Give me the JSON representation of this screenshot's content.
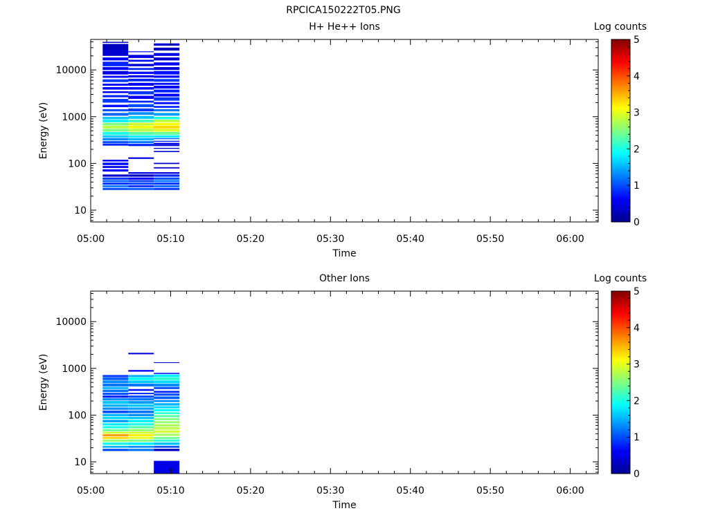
{
  "figure_title": "RPCICA150222T05.PNG",
  "colorbar": {
    "label": "Log counts",
    "min": 0,
    "max": 5,
    "ticks": [
      "0",
      "1",
      "2",
      "3",
      "4",
      "5"
    ],
    "colormap": "jet"
  },
  "chart_data": [
    {
      "type": "heatmap",
      "title": "H+ He++ Ions",
      "xlabel": "Time",
      "ylabel": "Energy (eV)",
      "x_ticks": [
        "05:00",
        "05:10",
        "05:20",
        "05:30",
        "05:40",
        "05:50",
        "06:00"
      ],
      "y_ticks": [
        "10",
        "100",
        "1000",
        "10000"
      ],
      "y_scale": "log",
      "xlim_min": [
        0,
        63.5
      ],
      "ylim": [
        5.6,
        45000
      ],
      "colorbar_label": "Log counts",
      "clim": [
        0,
        5
      ],
      "time_bins_min": [
        [
          1.5,
          4.7
        ],
        [
          4.7,
          7.9
        ],
        [
          7.9,
          11.1
        ]
      ],
      "cells": [
        [
          [
            38000,
            40000,
            0.4
          ],
          [
            27000,
            36000,
            0.3
          ],
          [
            20000,
            27000,
            0.4
          ],
          [
            16000,
            18500,
            0.6
          ],
          [
            12000,
            15000,
            0.8
          ],
          [
            10000,
            11500,
            0.6
          ],
          [
            8000,
            9500,
            0.5
          ],
          [
            6800,
            7500,
            0.7
          ],
          [
            5500,
            6300,
            0.9
          ],
          [
            4600,
            5100,
            0.6
          ],
          [
            3800,
            4300,
            0.7
          ],
          [
            3200,
            3500,
            0.6
          ],
          [
            2600,
            2900,
            0.8
          ],
          [
            2000,
            2400,
            0.9
          ],
          [
            1600,
            1800,
            0.7
          ],
          [
            1300,
            1450,
            1.0
          ],
          [
            1050,
            1200,
            1.1
          ],
          [
            880,
            990,
            1.6
          ],
          [
            760,
            860,
            1.8
          ],
          [
            650,
            740,
            2.5
          ],
          [
            560,
            640,
            2.8
          ],
          [
            480,
            550,
            2.5
          ],
          [
            410,
            470,
            2.0
          ],
          [
            360,
            400,
            1.6
          ],
          [
            310,
            350,
            1.3
          ],
          [
            270,
            300,
            1.0
          ],
          [
            240,
            265,
            0.8
          ],
          [
            110,
            120,
            0.6
          ],
          [
            92,
            104,
            0.7
          ],
          [
            80,
            88,
            0.5
          ],
          [
            67,
            75,
            0.6
          ],
          [
            52,
            58,
            0.4
          ],
          [
            45,
            50,
            0.9
          ],
          [
            40,
            44,
            1.1
          ],
          [
            35,
            39,
            0.9
          ],
          [
            31,
            34,
            1.2
          ],
          [
            27,
            30,
            1.0
          ]
        ],
        [
          [
            24000,
            25000,
            0.6
          ],
          [
            18000,
            21000,
            0.5
          ],
          [
            15000,
            16500,
            0.7
          ],
          [
            12000,
            13500,
            0.4
          ],
          [
            10000,
            11000,
            0.8
          ],
          [
            8200,
            9200,
            0.7
          ],
          [
            6900,
            7700,
            0.5
          ],
          [
            5700,
            6500,
            0.8
          ],
          [
            4600,
            5300,
            0.6
          ],
          [
            3800,
            4300,
            0.7
          ],
          [
            3000,
            3500,
            0.9
          ],
          [
            2400,
            2800,
            0.6
          ],
          [
            2000,
            2200,
            0.8
          ],
          [
            1600,
            1850,
            1.0
          ],
          [
            1300,
            1500,
            0.9
          ],
          [
            1100,
            1250,
            1.3
          ],
          [
            900,
            1040,
            1.6
          ],
          [
            760,
            860,
            2.2
          ],
          [
            650,
            740,
            2.9
          ],
          [
            560,
            640,
            3.1
          ],
          [
            480,
            550,
            2.8
          ],
          [
            410,
            470,
            2.3
          ],
          [
            360,
            400,
            1.8
          ],
          [
            310,
            350,
            1.5
          ],
          [
            270,
            300,
            1.2
          ],
          [
            235,
            262,
            0.8
          ],
          [
            125,
            135,
            0.5
          ],
          [
            60,
            65,
            0.5
          ],
          [
            52,
            58,
            0.3
          ],
          [
            45,
            50,
            0.6
          ],
          [
            40,
            44,
            0.9
          ],
          [
            35,
            39,
            1.0
          ],
          [
            31,
            34,
            0.8
          ],
          [
            27,
            30,
            1.1
          ]
        ],
        [
          [
            33000,
            37000,
            0.4
          ],
          [
            26000,
            30000,
            0.3
          ],
          [
            20000,
            23000,
            0.5
          ],
          [
            16000,
            18500,
            0.4
          ],
          [
            12500,
            14500,
            0.6
          ],
          [
            10000,
            11500,
            0.4
          ],
          [
            8000,
            9500,
            0.7
          ],
          [
            6800,
            7600,
            0.6
          ],
          [
            5600,
            6400,
            0.9
          ],
          [
            4800,
            5300,
            0.7
          ],
          [
            4000,
            4600,
            0.6
          ],
          [
            3300,
            3800,
            0.8
          ],
          [
            2700,
            3100,
            0.6
          ],
          [
            2200,
            2600,
            0.9
          ],
          [
            1850,
            2050,
            0.7
          ],
          [
            1550,
            1700,
            0.8
          ],
          [
            1300,
            1450,
            1.2
          ],
          [
            1050,
            1200,
            1.4
          ],
          [
            880,
            990,
            2.0
          ],
          [
            760,
            860,
            2.8
          ],
          [
            650,
            740,
            3.1
          ],
          [
            560,
            640,
            3.3
          ],
          [
            480,
            550,
            3.0
          ],
          [
            410,
            470,
            2.4
          ],
          [
            360,
            400,
            1.8
          ],
          [
            330,
            350,
            1.2
          ],
          [
            290,
            305,
            0.8
          ],
          [
            250,
            275,
            0.5
          ],
          [
            235,
            248,
            0.4
          ],
          [
            205,
            215,
            0.4
          ],
          [
            175,
            185,
            0.4
          ],
          [
            97,
            103,
            0.4
          ],
          [
            78,
            83,
            0.4
          ],
          [
            60,
            65,
            0.4
          ],
          [
            52,
            58,
            0.8
          ],
          [
            45,
            50,
            1.0
          ],
          [
            40,
            44,
            1.2
          ],
          [
            35,
            39,
            0.9
          ],
          [
            31,
            34,
            1.1
          ],
          [
            27,
            30,
            0.9
          ]
        ]
      ]
    },
    {
      "type": "heatmap",
      "title": "Other Ions",
      "xlabel": "Time",
      "ylabel": "Energy (eV)",
      "x_ticks": [
        "05:00",
        "05:10",
        "05:20",
        "05:30",
        "05:40",
        "05:50",
        "06:00"
      ],
      "y_ticks": [
        "10",
        "100",
        "1000",
        "10000"
      ],
      "y_scale": "log",
      "xlim_min": [
        0,
        63.5
      ],
      "ylim": [
        5.6,
        45000
      ],
      "colorbar_label": "Log counts",
      "clim": [
        0,
        5
      ],
      "time_bins_min": [
        [
          1.5,
          4.7
        ],
        [
          4.7,
          7.9
        ],
        [
          7.9,
          11.1
        ]
      ],
      "cells": [
        [
          [
            650,
            720,
            0.9
          ],
          [
            560,
            640,
            1.1
          ],
          [
            480,
            550,
            1.3
          ],
          [
            410,
            470,
            1.2
          ],
          [
            360,
            400,
            1.5
          ],
          [
            310,
            350,
            1.2
          ],
          [
            270,
            300,
            1.0
          ],
          [
            235,
            262,
            0.8
          ],
          [
            205,
            230,
            1.3
          ],
          [
            175,
            200,
            1.6
          ],
          [
            150,
            170,
            1.5
          ],
          [
            130,
            145,
            1.3
          ],
          [
            110,
            125,
            1.0
          ],
          [
            95,
            106,
            1.5
          ],
          [
            82,
            92,
            1.7
          ],
          [
            70,
            79,
            1.4
          ],
          [
            60,
            67,
            1.8
          ],
          [
            52,
            58,
            2.0
          ],
          [
            45,
            50,
            2.4
          ],
          [
            40,
            44,
            2.9
          ],
          [
            35,
            39,
            3.6
          ],
          [
            31,
            34,
            3.3
          ],
          [
            27,
            30,
            2.6
          ],
          [
            23,
            26,
            2.0
          ],
          [
            20,
            22,
            1.5
          ],
          [
            17,
            19,
            1.0
          ]
        ],
        [
          [
            2000,
            2150,
            0.5
          ],
          [
            850,
            920,
            0.6
          ],
          [
            650,
            720,
            1.5
          ],
          [
            560,
            640,
            1.9
          ],
          [
            480,
            550,
            1.6
          ],
          [
            410,
            470,
            1.2
          ],
          [
            330,
            360,
            0.7
          ],
          [
            280,
            300,
            0.8
          ],
          [
            235,
            262,
            1.0
          ],
          [
            205,
            230,
            1.2
          ],
          [
            175,
            200,
            1.4
          ],
          [
            150,
            170,
            1.6
          ],
          [
            130,
            145,
            1.4
          ],
          [
            110,
            125,
            1.2
          ],
          [
            95,
            106,
            1.3
          ],
          [
            82,
            92,
            1.6
          ],
          [
            70,
            79,
            1.8
          ],
          [
            60,
            67,
            2.0
          ],
          [
            52,
            58,
            2.3
          ],
          [
            45,
            50,
            2.6
          ],
          [
            40,
            44,
            2.9
          ],
          [
            35,
            39,
            3.2
          ],
          [
            31,
            34,
            3.0
          ],
          [
            27,
            30,
            2.5
          ],
          [
            23,
            26,
            1.8
          ],
          [
            20,
            22,
            1.3
          ],
          [
            17,
            19,
            1.2
          ]
        ],
        [
          [
            1300,
            1350,
            0.4
          ],
          [
            760,
            800,
            0.6
          ],
          [
            650,
            740,
            1.8
          ],
          [
            560,
            640,
            2.1
          ],
          [
            480,
            550,
            1.7
          ],
          [
            410,
            470,
            1.3
          ],
          [
            360,
            400,
            1.0
          ],
          [
            300,
            330,
            0.8
          ],
          [
            260,
            290,
            1.0
          ],
          [
            220,
            250,
            1.1
          ],
          [
            190,
            210,
            1.3
          ],
          [
            160,
            180,
            1.5
          ],
          [
            140,
            155,
            1.7
          ],
          [
            120,
            135,
            1.9
          ],
          [
            105,
            115,
            2.1
          ],
          [
            90,
            100,
            2.3
          ],
          [
            78,
            86,
            2.5
          ],
          [
            67,
            74,
            2.6
          ],
          [
            57,
            64,
            2.7
          ],
          [
            49,
            55,
            2.8
          ],
          [
            42,
            47,
            2.9
          ],
          [
            36,
            40,
            2.7
          ],
          [
            31,
            34,
            2.4
          ],
          [
            27,
            30,
            2.1
          ],
          [
            23,
            26,
            1.6
          ],
          [
            20,
            22,
            1.0
          ],
          [
            17,
            19,
            0.3
          ],
          [
            5.6,
            10.5,
            0.5
          ]
        ]
      ]
    }
  ]
}
